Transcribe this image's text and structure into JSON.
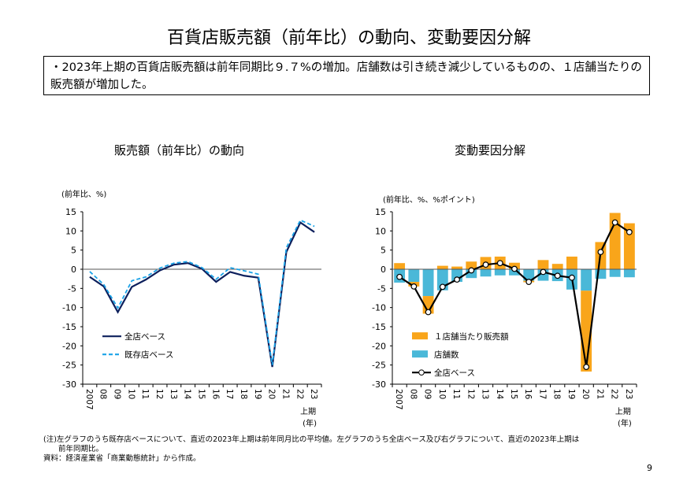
{
  "title": "百貨店販売額（前年比）の動向、変動要因分解",
  "summary": "・2023年上期の百貨店販売額は前年同期比９.７%の増加。店舗数は引き続き減少しているものの、１店舗当たりの販売額が増加した。",
  "chart_data": [
    {
      "type": "line",
      "title": "販売額（前年比）の動向",
      "ylabel": "(前年比、%)",
      "xunit": "(年)",
      "last_suffix": "上期",
      "categories": [
        "2007",
        "08",
        "09",
        "10",
        "11",
        "12",
        "13",
        "14",
        "15",
        "16",
        "17",
        "18",
        "19",
        "20",
        "21",
        "22",
        "23"
      ],
      "ylim": [
        -30,
        15
      ],
      "yticks": [
        15,
        10,
        5,
        0,
        -5,
        -10,
        -15,
        -20,
        -25,
        -30
      ],
      "legend": "center-left",
      "series": [
        {
          "name": "全店ベース",
          "color": "#0c1f5c",
          "style": "solid",
          "values": [
            -2.0,
            -4.5,
            -11.2,
            -4.6,
            -2.7,
            -0.3,
            1.2,
            1.6,
            0.1,
            -3.3,
            -0.7,
            -1.7,
            -2.2,
            -25.5,
            4.5,
            12.2,
            9.7
          ]
        },
        {
          "name": "既存店ベース",
          "color": "#1aa3e8",
          "style": "dashed",
          "values": [
            -0.6,
            -4.0,
            -10.1,
            -3.0,
            -2.0,
            0.3,
            1.6,
            2.0,
            0.4,
            -2.6,
            0.4,
            -0.4,
            -1.3,
            -25.0,
            5.6,
            12.8,
            11.2
          ]
        }
      ]
    },
    {
      "type": "bar",
      "title": "変動要因分解",
      "ylabel": "(前年比、%、%ポイント)",
      "xunit": "(年)",
      "last_suffix": "上期",
      "categories": [
        "2007",
        "08",
        "09",
        "10",
        "11",
        "12",
        "13",
        "14",
        "15",
        "16",
        "17",
        "18",
        "19",
        "20",
        "21",
        "22",
        "23"
      ],
      "ylim": [
        -30,
        15
      ],
      "yticks": [
        15,
        10,
        5,
        0,
        -5,
        -10,
        -15,
        -20,
        -25,
        -30
      ],
      "legend": "center-left",
      "series": [
        {
          "name": "１店舗当たり販売額",
          "color": "#f9a51a",
          "kind": "bar",
          "values": [
            1.6,
            -1.2,
            -4.6,
            0.9,
            0.7,
            2.0,
            3.2,
            3.3,
            1.7,
            -0.4,
            2.4,
            1.4,
            3.3,
            -21.1,
            7.1,
            14.7,
            12.0
          ]
        },
        {
          "name": "店舗数",
          "color": "#4ab8d8",
          "kind": "bar",
          "values": [
            -3.5,
            -3.3,
            -7.0,
            -5.5,
            -3.3,
            -2.3,
            -1.9,
            -1.6,
            -1.6,
            -3.0,
            -3.0,
            -3.1,
            -5.3,
            -5.6,
            -2.5,
            -2.0,
            -2.1
          ]
        },
        {
          "name": "全店ベース",
          "color": "#000000",
          "kind": "line-marker",
          "values": [
            -2.0,
            -4.5,
            -11.2,
            -4.6,
            -2.7,
            -0.3,
            1.2,
            1.6,
            0.1,
            -3.3,
            -0.7,
            -1.7,
            -2.2,
            -25.5,
            4.5,
            12.2,
            9.7
          ]
        }
      ]
    }
  ],
  "notes": [
    "(注)左グラフのうち既存店ベースについて、直近の2023年上期は前年同月比の平均値。左グラフのうち全店ベース及び右グラフについて、直近の2023年上期は",
    "　　前年同期比。",
    "資料：経済産業省「商業動態統計」から作成。"
  ],
  "page_number": "9"
}
